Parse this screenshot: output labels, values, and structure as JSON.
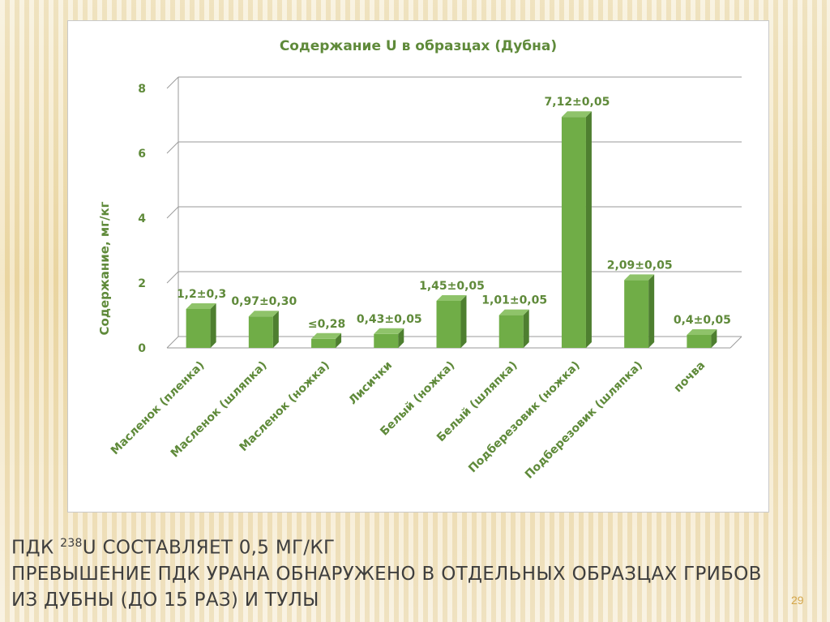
{
  "slide": {
    "caption_line1_a": "ПДК ",
    "caption_line1_sup": "238",
    "caption_line1_b": "U составляет 0,5 мг/кг",
    "caption_line2": "Превышение ПДК  урана обнаружено в отдельных образцах грибов",
    "caption_line3": "из Дубны (до 15 раз) и Тулы",
    "page_number": "29"
  },
  "chart_data": {
    "type": "bar",
    "title": "Содержание U в образцах (Дубна)",
    "xlabel": "",
    "ylabel": "Содержание, мг/кг",
    "ylim": [
      0,
      8
    ],
    "yticks": [
      "0",
      "2",
      "4",
      "6",
      "8"
    ],
    "grid": true,
    "categories": [
      "Масленок (пленка)",
      "Масленок (шляпка)",
      "Масленок (ножка)",
      "Лисички",
      "Белый (ножка)",
      "Белый (шляпка)",
      "Подберезовик (ножка)",
      "Подберезовик (шляпка)",
      "почва"
    ],
    "values": [
      1.2,
      0.97,
      0.28,
      0.43,
      1.45,
      1.01,
      7.12,
      2.09,
      0.4
    ],
    "data_labels": [
      "1,2±0,3",
      "0,97±0,30",
      "≤0,28",
      "0,43±0,05",
      "1,45±0,05",
      "1,01±0,05",
      "7,12±0,05",
      "2,09±0,05",
      "0,4±0,05"
    ],
    "colors": {
      "bar_front": "#70ad47",
      "bar_side": "#4e7f30",
      "bar_top": "#8fc36a",
      "text": "#5f8a3a"
    }
  }
}
